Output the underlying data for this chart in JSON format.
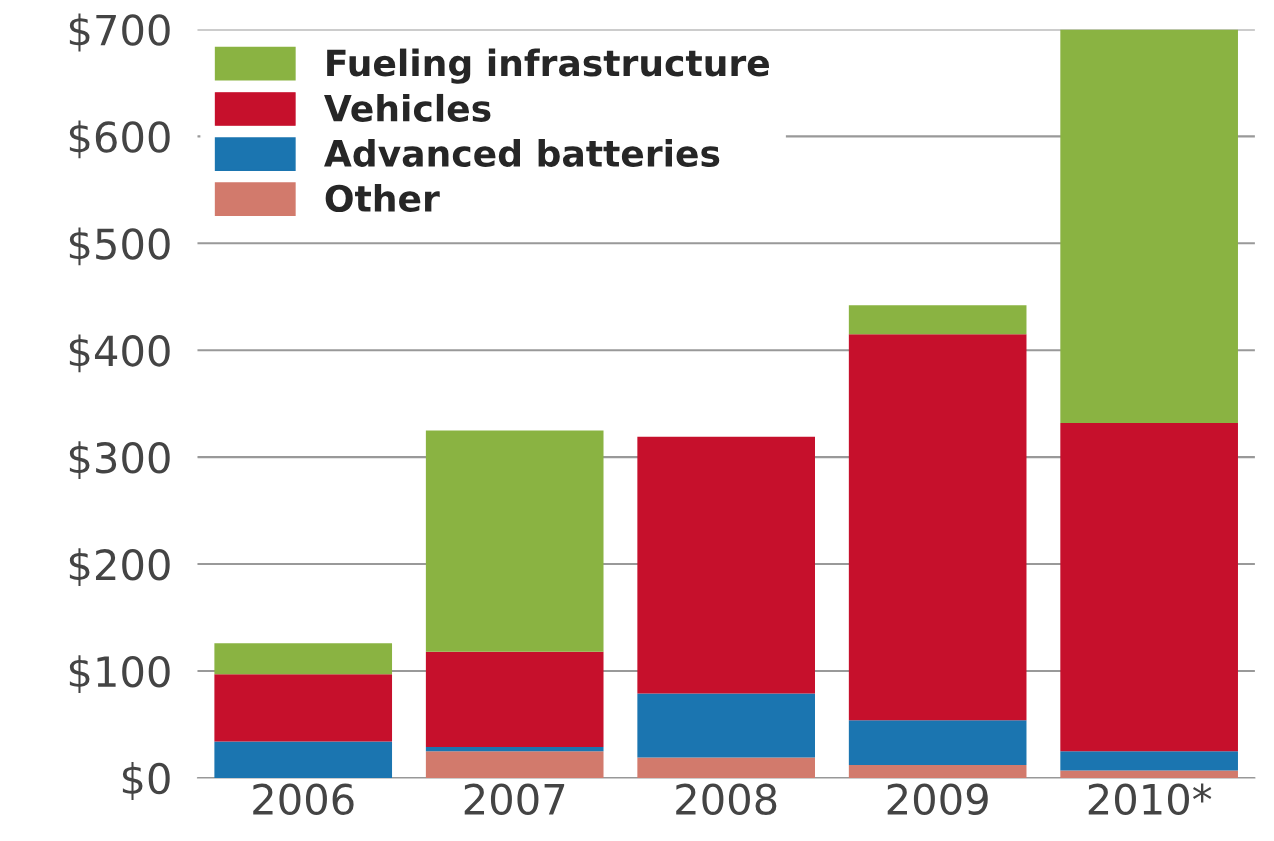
{
  "chart_data": {
    "type": "bar",
    "stacked": true,
    "categories": [
      "2006",
      "2007",
      "2008",
      "2009",
      "2010*"
    ],
    "series": [
      {
        "name": "Other",
        "color": "#d27a6c",
        "values": [
          0,
          25,
          19,
          12,
          7
        ]
      },
      {
        "name": "Advanced batteries",
        "color": "#1b75b0",
        "values": [
          34,
          4,
          60,
          42,
          18
        ]
      },
      {
        "name": "Vehicles",
        "color": "#c6102c",
        "values": [
          63,
          89,
          240,
          361,
          307
        ]
      },
      {
        "name": "Fueling infrastructure",
        "color": "#8ab342",
        "values": [
          29,
          207,
          0,
          27,
          368
        ]
      }
    ],
    "ylim": [
      0,
      700
    ],
    "yticks": [
      {
        "value": 0,
        "label": "$0"
      },
      {
        "value": 100,
        "label": "$100"
      },
      {
        "value": 200,
        "label": "$200"
      },
      {
        "value": 300,
        "label": "$300"
      },
      {
        "value": 400,
        "label": "$400"
      },
      {
        "value": 500,
        "label": "$500"
      },
      {
        "value": 600,
        "label": "$600"
      },
      {
        "value": 700,
        "label": "$700"
      }
    ],
    "grid": "y",
    "legend": "top left"
  }
}
